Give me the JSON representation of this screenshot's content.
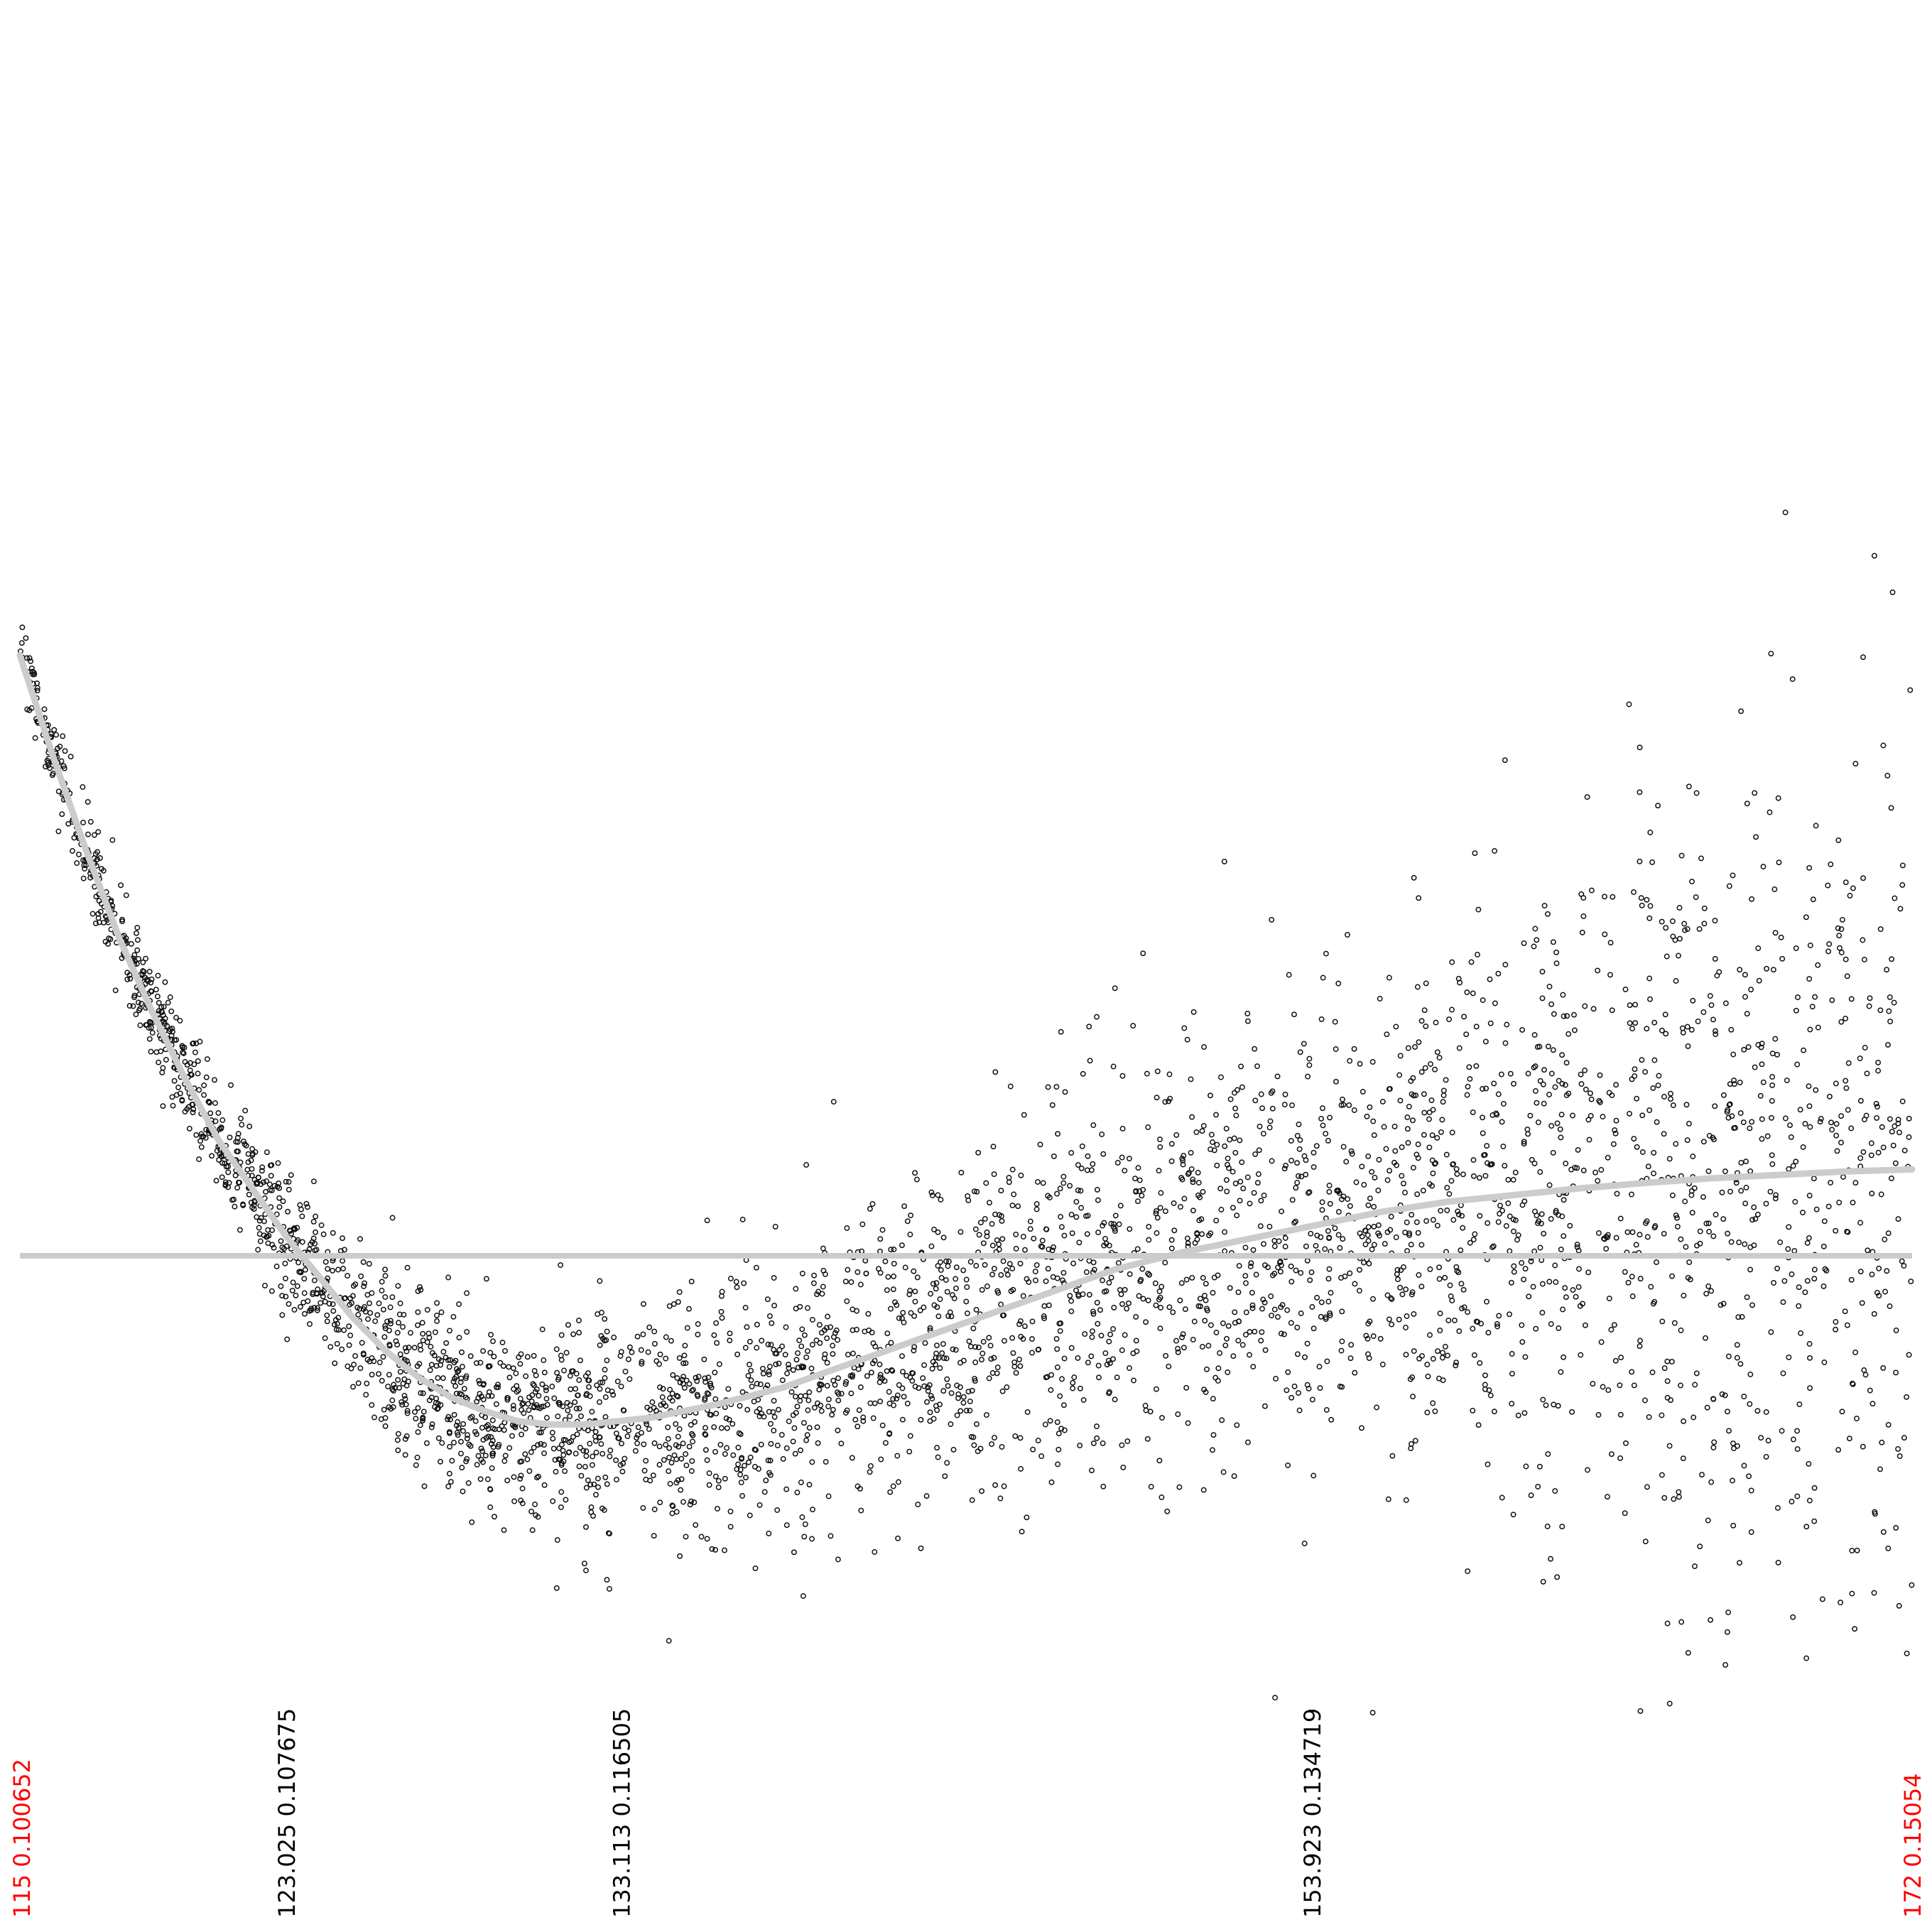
{
  "chart_data": {
    "type": "scatter",
    "title": "",
    "xlabel": "",
    "ylabel": "",
    "grid": false,
    "legend": "none",
    "xlim": [
      115,
      172
    ],
    "x_ticks": [
      {
        "value": 115,
        "label": "115",
        "secondary": "0.100652",
        "color": "#ff0000"
      },
      {
        "value": 123.025,
        "label": "123.025",
        "secondary": "0.107675",
        "color": "#000000"
      },
      {
        "value": 133.113,
        "label": "133.113",
        "secondary": "0.116505",
        "color": "#000000"
      },
      {
        "value": 153.923,
        "label": "153.923",
        "secondary": "0.134719",
        "color": "#000000"
      },
      {
        "value": 172,
        "label": "172",
        "secondary": "0.15054",
        "color": "#ff0000"
      }
    ],
    "y_reference": 0,
    "ylim": [
      -0.7,
      1.0
    ],
    "fit_curve": {
      "color": "#cccccc",
      "x": [
        115,
        116,
        117,
        118,
        119,
        120,
        121,
        122,
        123,
        124,
        125,
        126,
        127,
        128,
        129,
        130,
        131,
        132,
        133,
        134,
        136,
        138,
        140,
        142,
        144,
        146,
        148,
        150,
        152,
        154,
        156,
        158,
        160,
        162,
        164,
        166,
        168,
        170,
        172
      ],
      "y": [
        0.89,
        0.74,
        0.6,
        0.47,
        0.36,
        0.26,
        0.17,
        0.1,
        0.03,
        -0.03,
        -0.09,
        -0.14,
        -0.18,
        -0.21,
        -0.23,
        -0.245,
        -0.25,
        -0.25,
        -0.245,
        -0.24,
        -0.22,
        -0.195,
        -0.16,
        -0.125,
        -0.09,
        -0.055,
        -0.02,
        0.005,
        0.025,
        0.045,
        0.065,
        0.08,
        0.09,
        0.1,
        0.108,
        0.115,
        0.12,
        0.125,
        0.128
      ]
    },
    "scatter_color": "#111111",
    "scatter_spread": {
      "x": [
        115,
        118,
        121,
        123,
        125,
        128,
        131,
        134,
        138,
        142,
        146,
        150,
        154,
        158,
        162,
        166,
        170,
        172
      ],
      "y_sd": [
        0.03,
        0.035,
        0.04,
        0.05,
        0.06,
        0.07,
        0.075,
        0.085,
        0.1,
        0.115,
        0.13,
        0.15,
        0.17,
        0.2,
        0.24,
        0.28,
        0.32,
        0.34
      ]
    },
    "n_points": 4000
  }
}
